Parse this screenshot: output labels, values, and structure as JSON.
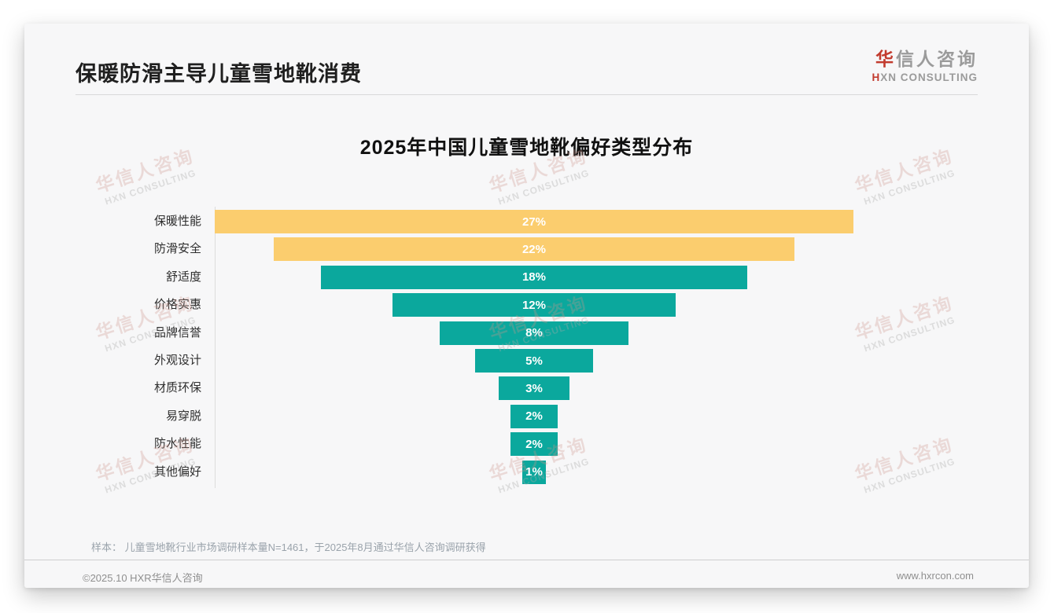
{
  "header": {
    "title": "保暖防滑主导儿童雪地靴消费"
  },
  "logo": {
    "cn_accent": "华",
    "cn_rest": "信人咨询",
    "en_accent": "H",
    "en_rest": "XN CONSULTING"
  },
  "watermark": {
    "cn": "华信人咨询",
    "en": "HXN CONSULTING"
  },
  "chart_data": {
    "type": "bar",
    "variant": "centered-funnel",
    "title": "2025年中国儿童雪地靴偏好类型分布",
    "categories": [
      "保暖性能",
      "防滑安全",
      "舒适度",
      "价格实惠",
      "品牌信誉",
      "外观设计",
      "材质环保",
      "易穿脱",
      "防水性能",
      "其他偏好"
    ],
    "values": [
      27,
      22,
      18,
      12,
      8,
      5,
      3,
      2,
      2,
      1
    ],
    "labels": [
      "27%",
      "22%",
      "18%",
      "12%",
      "8%",
      "5%",
      "3%",
      "2%",
      "2%",
      "1%"
    ],
    "unit": "%",
    "xlim": [
      0,
      27
    ],
    "grid": false,
    "legend": false,
    "colors": {
      "highlight": "#fbcd6e",
      "base": "#0ba89d",
      "highlight_count": 2,
      "value_text": "#ffffff"
    }
  },
  "note": {
    "text": "样本： 儿童雪地靴行业市场调研样本量N=1461，于2025年8月通过华信人咨询调研获得"
  },
  "footer": {
    "left": "©2025.10 HXR华信人咨询",
    "right": "www.hxrcon.com"
  }
}
